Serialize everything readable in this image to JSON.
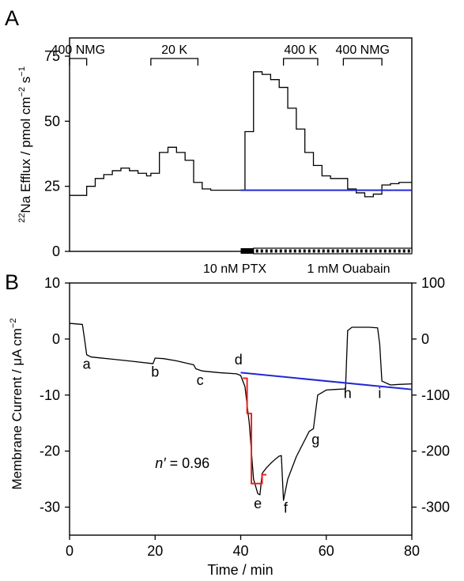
{
  "chart_data": [
    {
      "type": "line",
      "panel_label": "A",
      "ylabel_prefix": "22",
      "ylabel": "Na Efflux / pmol cm",
      "ylabel_exp1": "−2",
      "ylabel_mid": " s",
      "ylabel_exp2": "−1",
      "ylim": [
        0,
        82
      ],
      "xlim": [
        0,
        80
      ],
      "yticks": [
        "0",
        "25",
        "50",
        "75"
      ],
      "ytick_values": [
        0,
        25,
        50,
        75
      ],
      "xlabel": "",
      "grid": false,
      "bracket_labels": [
        {
          "text": "400 NMG",
          "x_start": 0,
          "x_end": 4
        },
        {
          "text": "20 K",
          "x_start": 19,
          "x_end": 30
        },
        {
          "text": "400 K",
          "x_start": 50,
          "x_end": 58
        },
        {
          "text": "400 NMG",
          "x_start": 64,
          "x_end": 73
        }
      ],
      "treatment_bars": [
        {
          "text": "10 nM PTX",
          "x_start": 40,
          "x_end": 43,
          "style": "solid"
        },
        {
          "text": "1 mM Ouabain",
          "x_start": 43,
          "x_end": 80,
          "style": "dashed"
        }
      ],
      "series": [
        {
          "style": "step",
          "color": "#000000",
          "x": [
            0,
            4,
            6,
            8,
            10,
            12,
            14,
            16,
            18,
            19,
            21,
            23,
            25,
            27,
            29,
            31,
            33,
            35,
            37,
            39,
            41,
            43,
            45,
            47,
            49,
            51,
            53,
            55,
            57,
            59,
            61,
            63,
            65,
            67,
            69,
            71,
            73,
            75,
            77,
            80
          ],
          "y": [
            21.5,
            25,
            28,
            29.5,
            31,
            32,
            31,
            30,
            29,
            30,
            38,
            40,
            38,
            35,
            26.5,
            24,
            23.5,
            23.5,
            23.5,
            23.5,
            46,
            69,
            68,
            66,
            63,
            55,
            47,
            38,
            33,
            29,
            28,
            28,
            24,
            22.5,
            21,
            22,
            25.5,
            26,
            26.5,
            26.5
          ]
        },
        {
          "style": "line",
          "color": "#2128d6",
          "x": [
            40,
            80
          ],
          "y": [
            23.5,
            23.5
          ]
        }
      ]
    },
    {
      "type": "line",
      "panel_label": "B",
      "ylabel": "Membrane Current / μA cm",
      "ylabel_exp": "−2",
      "xlabel": "Time / min",
      "xlim": [
        0,
        80
      ],
      "ylim_left": [
        -35,
        10
      ],
      "ylim_right": [
        -350,
        100
      ],
      "xticks": [
        "0",
        "20",
        "40",
        "60",
        "80"
      ],
      "xtick_values": [
        0,
        20,
        40,
        60,
        80
      ],
      "yticks_left": [
        "10",
        "0",
        "-10",
        "-20",
        "-30"
      ],
      "ytick_values_left": [
        10,
        0,
        -10,
        -20,
        -30
      ],
      "yticks_right": [
        "100",
        "0",
        "-100",
        "-200",
        "-300"
      ],
      "ytick_values_right": [
        100,
        0,
        -100,
        -200,
        -300
      ],
      "grid": false,
      "annotation": {
        "prefix": "n′",
        "text": " = 0.96",
        "x": 20,
        "y": -23
      },
      "point_labels": [
        {
          "text": "a",
          "x": 4,
          "y": -5.3
        },
        {
          "text": "b",
          "x": 20,
          "y": -6.7
        },
        {
          "text": "c",
          "x": 30.5,
          "y": -8.2
        },
        {
          "text": "d",
          "x": 39.5,
          "y": -4.5
        },
        {
          "text": "e",
          "x": 44,
          "y": -30.2
        },
        {
          "text": "f",
          "x": 50.5,
          "y": -31
        },
        {
          "text": "g",
          "x": 57.5,
          "y": -18.8
        },
        {
          "text": "h",
          "x": 65,
          "y": -10.5
        },
        {
          "text": "i",
          "x": 72.5,
          "y": -10.5
        }
      ],
      "series": [
        {
          "style": "line",
          "color": "#000000",
          "x": [
            0,
            3,
            3.5,
            4,
            5,
            10,
            15,
            19.5,
            20,
            22,
            25,
            29,
            29.5,
            31,
            35,
            39,
            40,
            41,
            42,
            43,
            44,
            44.5,
            45,
            46,
            47,
            48,
            49,
            49.5,
            50,
            51,
            53,
            55,
            56,
            57,
            58,
            60,
            62,
            64.5,
            65,
            66,
            67,
            70,
            72,
            72.5,
            73,
            75,
            77,
            80
          ],
          "y": [
            2.8,
            2.6,
            0,
            -2.8,
            -3.2,
            -3.6,
            -4,
            -4.4,
            -3.4,
            -3.5,
            -3.9,
            -4.6,
            -5.3,
            -5.7,
            -6,
            -6.2,
            -6.5,
            -8.5,
            -15,
            -25,
            -27.6,
            -27.8,
            -24,
            -23,
            -22.2,
            -21.5,
            -20.9,
            -20.8,
            -28.8,
            -25,
            -21,
            -18,
            -16.5,
            -16,
            -10,
            -9.1,
            -9,
            -8.9,
            1.5,
            2.1,
            2.1,
            2.1,
            2,
            -1,
            -7.5,
            -8.2,
            -8.1,
            -8
          ]
        },
        {
          "style": "step",
          "color": "#e8231f",
          "x": [
            40.5,
            41.5,
            41.5,
            42.5,
            42.5,
            43.5,
            45,
            45,
            46
          ],
          "y": [
            -7,
            -7,
            -13.3,
            -13.3,
            -25.8,
            -25.8,
            -25.8,
            -24.2,
            -24.2
          ]
        },
        {
          "style": "line",
          "color": "#2128d6",
          "x": [
            40,
            80
          ],
          "y": [
            -6,
            -9
          ]
        }
      ]
    }
  ]
}
